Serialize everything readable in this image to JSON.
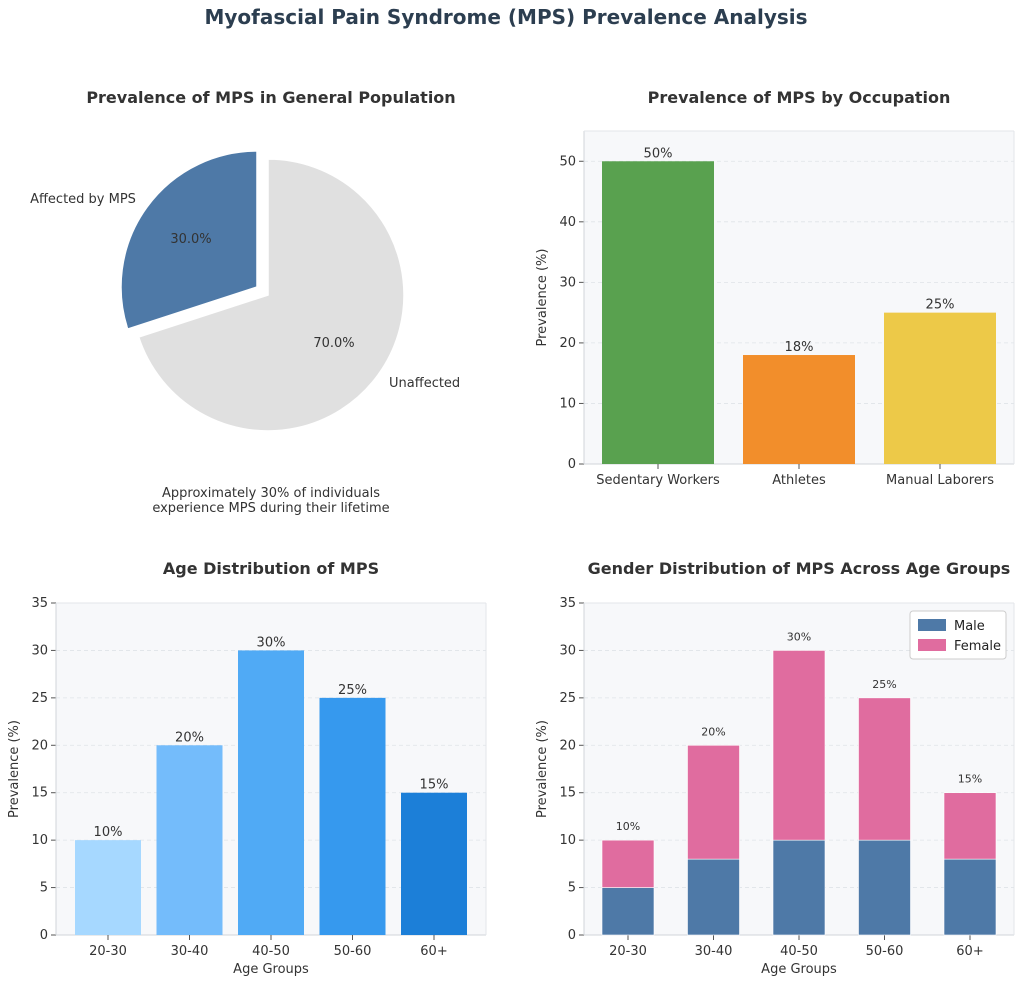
{
  "title": "Myofascial Pain Syndrome (MPS) Prevalence Analysis",
  "colors": {
    "affected": "#4e79a7",
    "unaffected": "#e0e0e0",
    "occupation": [
      "#59a14f",
      "#f28e2b",
      "#edc948"
    ],
    "age": [
      "#a6d8ff",
      "#74bcfb",
      "#50aaf5",
      "#3699ee",
      "#1c7fd8"
    ],
    "male": "#4e79a7",
    "female": "#e06c9f",
    "plot_bg": "#f7f8fa"
  },
  "chart_data": [
    {
      "type": "pie",
      "title": "Prevalence of MPS in General Population",
      "labels": [
        "Affected by MPS",
        "Unaffected"
      ],
      "values": [
        30,
        70
      ],
      "pct_labels": [
        "30.0%",
        "70.0%"
      ],
      "exploded": [
        true,
        false
      ],
      "caption": [
        "Approximately 30% of individuals",
        "experience MPS during their lifetime"
      ]
    },
    {
      "type": "bar",
      "title": "Prevalence of MPS by Occupation",
      "categories": [
        "Sedentary Workers",
        "Athletes",
        "Manual Laborers"
      ],
      "values": [
        50,
        18,
        25
      ],
      "value_labels": [
        "50%",
        "18%",
        "25%"
      ],
      "xlabel": "",
      "ylabel": "Prevalence (%)",
      "ylim": [
        0,
        55
      ],
      "yticks": [
        0,
        10,
        20,
        30,
        40,
        50
      ],
      "grid": "y-dashed"
    },
    {
      "type": "bar",
      "title": "Age Distribution of MPS",
      "categories": [
        "20-30",
        "30-40",
        "40-50",
        "50-60",
        "60+"
      ],
      "values": [
        10,
        20,
        30,
        25,
        15
      ],
      "value_labels": [
        "10%",
        "20%",
        "30%",
        "25%",
        "15%"
      ],
      "xlabel": "Age Groups",
      "ylabel": "Prevalence (%)",
      "ylim": [
        0,
        35
      ],
      "yticks": [
        0,
        5,
        10,
        15,
        20,
        25,
        30,
        35
      ],
      "grid": "y-dashed"
    },
    {
      "type": "bar",
      "stacked": true,
      "title": "Gender Distribution of MPS Across Age Groups",
      "categories": [
        "20-30",
        "30-40",
        "40-50",
        "50-60",
        "60+"
      ],
      "series": [
        {
          "name": "Male",
          "values": [
            5,
            8,
            10,
            10,
            8
          ]
        },
        {
          "name": "Female",
          "values": [
            5,
            12,
            20,
            15,
            7
          ]
        }
      ],
      "total_labels": [
        "10%",
        "20%",
        "30%",
        "25%",
        "15%"
      ],
      "xlabel": "Age Groups",
      "ylabel": "Prevalence (%)",
      "ylim": [
        0,
        35
      ],
      "yticks": [
        0,
        5,
        10,
        15,
        20,
        25,
        30,
        35
      ],
      "legend": "top-right",
      "grid": "y-dashed"
    }
  ]
}
